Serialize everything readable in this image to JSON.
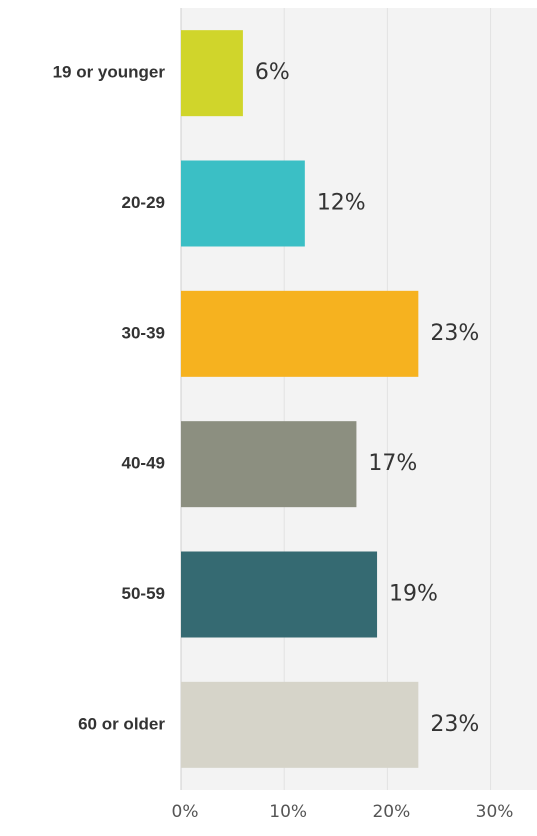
{
  "chart_data": {
    "type": "hbar",
    "categories": [
      "19 or younger",
      "20-29",
      "30-39",
      "40-49",
      "50-59",
      "60 or older"
    ],
    "values": [
      6,
      12,
      23,
      17,
      19,
      23
    ],
    "value_labels": [
      "6%",
      "12%",
      "23%",
      "17%",
      "19%",
      "23%"
    ],
    "colors": [
      "#d0d52b",
      "#3bbfc5",
      "#f6b21f",
      "#8c8f80",
      "#356a72",
      "#d6d4c9"
    ],
    "xlim": [
      0,
      34.5
    ],
    "xticks": [
      {
        "value": 0,
        "label": "0%"
      },
      {
        "value": 10,
        "label": "10%"
      },
      {
        "value": 20,
        "label": "20%"
      },
      {
        "value": 30,
        "label": "30%"
      }
    ],
    "grid": true
  }
}
